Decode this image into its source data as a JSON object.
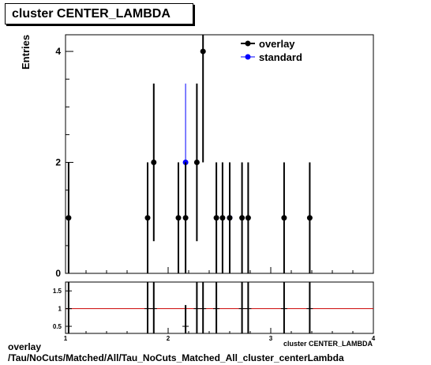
{
  "chart_data": {
    "type": "scatter",
    "title": "cluster CENTER_LAMBDA",
    "ylabel": "Entries",
    "xlabel": "cluster CENTER_LAMBDA",
    "xlim": [
      1,
      4
    ],
    "ylim": [
      0,
      4.3
    ],
    "yticks": [
      0,
      2,
      4
    ],
    "grid": false,
    "legend_position": "top-right",
    "colors": {
      "overlay": "#000000",
      "standard": "#0000ff",
      "ratio_line": "#cc0000"
    },
    "series": [
      {
        "name": "overlay",
        "x": [
          1.03,
          1.8,
          1.86,
          2.1,
          2.17,
          2.28,
          2.34,
          2.47,
          2.53,
          2.6,
          2.72,
          2.78,
          3.13,
          3.38
        ],
        "y": [
          1,
          1,
          2,
          1,
          1,
          2,
          4,
          1,
          1,
          1,
          1,
          1,
          1,
          1
        ],
        "err": [
          1,
          1,
          1.42,
          1,
          1,
          1.42,
          2,
          1,
          1,
          1,
          1,
          1,
          1,
          1
        ]
      },
      {
        "name": "standard",
        "x": [
          2.17,
          2.6
        ],
        "y": [
          2,
          1
        ],
        "err": [
          1.42,
          1
        ]
      }
    ],
    "ratio": {
      "ylim": [
        0.3,
        1.75
      ],
      "yticks": [
        0.5,
        1,
        1.5
      ],
      "xticks": [
        1,
        2,
        3,
        4
      ],
      "reference": 1,
      "points": [
        {
          "x": 1.03,
          "y": 1,
          "err": 1.5
        },
        {
          "x": 1.8,
          "y": 1,
          "err": 1.5
        },
        {
          "x": 1.86,
          "y": 1,
          "err": 1.5
        },
        {
          "x": 2.17,
          "y": 0.5,
          "err": 0.6
        },
        {
          "x": 2.28,
          "y": 1,
          "err": 1.5
        },
        {
          "x": 2.34,
          "y": 1,
          "err": 1.5
        },
        {
          "x": 2.47,
          "y": 1,
          "err": 1.5
        },
        {
          "x": 2.72,
          "y": 1,
          "err": 1.5
        },
        {
          "x": 2.78,
          "y": 1,
          "err": 1.5
        },
        {
          "x": 3.13,
          "y": 1,
          "err": 1.5
        },
        {
          "x": 3.38,
          "y": 1,
          "err": 1.5
        }
      ]
    }
  },
  "footer": {
    "line1": "overlay",
    "line2": "/Tau/NoCuts/Matched/All/Tau_NoCuts_Matched_All_cluster_centerLambda"
  }
}
